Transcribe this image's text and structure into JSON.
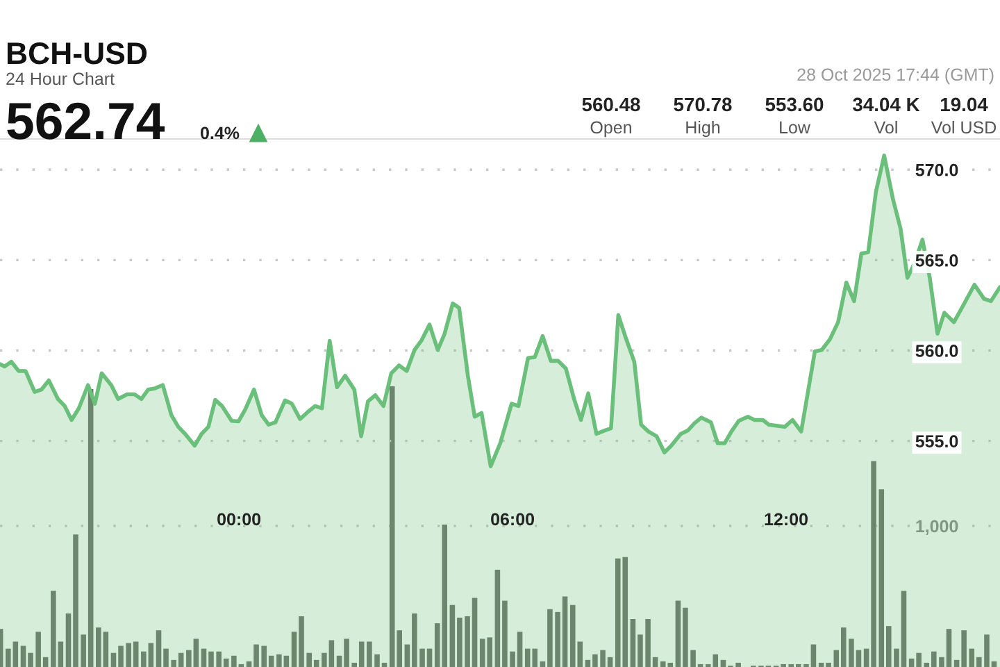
{
  "chart_data": {
    "type": "area",
    "title": "BCH-USD",
    "subtitle": "24 Hour Chart",
    "annotations": [
      "562.74",
      "0.4%",
      "28 Oct 2025 17:44 (GMT)",
      "560.48",
      "Open",
      "570.78",
      "High",
      "553.60",
      "Low",
      "34.04 K",
      "Vol",
      "19.04",
      "Vol USD"
    ],
    "xlim": [
      -5.24,
      16.69
    ],
    "xticks": [
      {
        "value": 0,
        "label": "00:00"
      },
      {
        "value": 6,
        "label": "06:00"
      },
      {
        "value": 12,
        "label": "12:00"
      }
    ],
    "ylim": [
      542.5,
      571.7
    ],
    "yticks": [
      {
        "value": 555,
        "label": "555.0"
      },
      {
        "value": 560,
        "label": "560.0"
      },
      {
        "value": 565,
        "label": "565.0"
      },
      {
        "value": 570,
        "label": "570.0"
      }
    ],
    "y2lim": [
      0,
      3744
    ],
    "y2ticks": [
      {
        "value": 1000,
        "label": "1,000"
      }
    ],
    "grid": "y",
    "legend": false,
    "series": [
      {
        "type": "bar",
        "axis": "y2",
        "color": "#6b7168",
        "x": [
          -5.23,
          -5.06,
          -4.9,
          -4.73,
          -4.57,
          -4.4,
          -4.24,
          -4.07,
          -3.91,
          -3.74,
          -3.58,
          -3.41,
          -3.25,
          -3.08,
          -2.92,
          -2.75,
          -2.59,
          -2.42,
          -2.26,
          -2.09,
          -1.93,
          -1.76,
          -1.6,
          -1.43,
          -1.27,
          -1.1,
          -0.94,
          -0.77,
          -0.61,
          -0.44,
          -0.28,
          -0.11,
          0.05,
          0.22,
          0.38,
          0.55,
          0.71,
          0.88,
          1.04,
          1.21,
          1.37,
          1.54,
          1.7,
          1.87,
          2.03,
          2.2,
          2.36,
          2.53,
          2.69,
          2.86,
          3.03,
          3.19,
          3.36,
          3.52,
          3.69,
          3.85,
          4.02,
          4.18,
          4.35,
          4.51,
          4.68,
          4.84,
          5.01,
          5.17,
          5.34,
          5.5,
          5.67,
          5.83,
          6.0,
          6.16,
          6.33,
          6.49,
          6.66,
          6.82,
          6.99,
          7.15,
          7.32,
          7.48,
          7.65,
          7.81,
          7.98,
          8.14,
          8.31,
          8.47,
          8.64,
          8.8,
          8.97,
          9.13,
          9.3,
          9.46,
          9.63,
          9.79,
          9.96,
          10.12,
          10.29,
          10.45,
          10.62,
          10.78,
          10.95,
          11.11,
          11.28,
          11.45,
          11.61,
          11.78,
          11.94,
          12.11,
          12.27,
          12.44,
          12.6,
          12.77,
          12.93,
          13.1,
          13.26,
          13.43,
          13.59,
          13.76,
          13.92,
          14.09,
          14.25,
          14.42,
          14.58,
          14.75,
          14.91,
          15.08,
          15.24,
          15.41,
          15.57,
          15.74,
          15.9,
          16.07,
          16.23,
          16.4,
          16.56
        ],
        "values": [
          270,
          130,
          180,
          150,
          100,
          250,
          70,
          540,
          180,
          380,
          940,
          230,
          1970,
          280,
          250,
          100,
          150,
          170,
          180,
          110,
          170,
          260,
          130,
          50,
          100,
          120,
          200,
          130,
          110,
          110,
          60,
          80,
          20,
          40,
          160,
          150,
          80,
          90,
          80,
          250,
          360,
          100,
          50,
          100,
          190,
          80,
          200,
          30,
          180,
          180,
          90,
          30,
          1990,
          260,
          160,
          380,
          130,
          130,
          310,
          1010,
          440,
          350,
          360,
          490,
          200,
          210,
          690,
          470,
          110,
          250,
          130,
          130,
          40,
          410,
          390,
          500,
          440,
          180,
          50,
          90,
          120,
          70,
          770,
          780,
          340,
          230,
          340,
          70,
          40,
          30,
          470,
          420,
          120,
          20,
          20,
          90,
          50,
          10,
          30,
          0,
          10,
          10,
          10,
          10,
          20,
          20,
          20,
          20,
          160,
          30,
          30,
          120,
          280,
          200,
          120,
          130,
          1460,
          1260,
          290,
          130,
          540,
          60,
          100,
          30,
          110,
          70,
          270,
          50,
          260,
          130,
          70,
          230,
          40
        ]
      },
      {
        "color": "#6abf7b",
        "x": [
          -5.24,
          -5.14,
          -4.99,
          -4.83,
          -4.68,
          -4.48,
          -4.33,
          -4.17,
          -3.97,
          -3.82,
          -3.67,
          -3.51,
          -3.31,
          -3.16,
          -3.01,
          -2.8,
          -2.65,
          -2.45,
          -2.29,
          -2.14,
          -1.99,
          -1.84,
          -1.67,
          -1.48,
          -1.33,
          -1.18,
          -0.97,
          -0.82,
          -0.67,
          -0.52,
          -0.37,
          -0.16,
          -0.01,
          0.14,
          0.33,
          0.5,
          0.65,
          0.8,
          1.01,
          1.16,
          1.34,
          1.51,
          1.67,
          1.82,
          1.99,
          2.15,
          2.33,
          2.53,
          2.68,
          2.83,
          2.99,
          3.17,
          3.34,
          3.51,
          3.68,
          3.85,
          4.0,
          4.18,
          4.36,
          4.51,
          4.69,
          4.83,
          5.02,
          5.17,
          5.32,
          5.52,
          5.73,
          5.98,
          6.13,
          6.34,
          6.49,
          6.66,
          6.84,
          7.0,
          7.17,
          7.35,
          7.5,
          7.66,
          7.84,
          8.01,
          8.16,
          8.32,
          8.47,
          8.67,
          8.82,
          8.98,
          9.16,
          9.33,
          9.48,
          9.69,
          9.84,
          9.99,
          10.14,
          10.35,
          10.5,
          10.65,
          10.8,
          10.96,
          11.16,
          11.31,
          11.49,
          11.62,
          11.82,
          11.97,
          12.14,
          12.33,
          12.63,
          12.78,
          12.96,
          13.14,
          13.32,
          13.49,
          13.65,
          13.8,
          13.97,
          14.15,
          14.34,
          14.51,
          14.66,
          14.81,
          14.99,
          15.15,
          15.32,
          15.47,
          15.68,
          15.88,
          16.13,
          16.34,
          16.49,
          16.69
        ],
        "values": [
          559.25,
          559.12,
          559.38,
          558.87,
          558.87,
          557.71,
          557.84,
          558.35,
          557.32,
          556.93,
          556.16,
          556.81,
          558.09,
          557.06,
          558.74,
          558.09,
          557.32,
          557.58,
          557.58,
          557.32,
          557.84,
          557.91,
          558.09,
          556.42,
          555.78,
          555.39,
          554.74,
          555.39,
          555.78,
          557.27,
          556.93,
          556.11,
          556.08,
          556.75,
          557.84,
          556.42,
          555.9,
          556.03,
          557.24,
          557.06,
          556.21,
          556.6,
          556.93,
          556.81,
          560.54,
          557.97,
          558.61,
          557.84,
          555.26,
          557.19,
          557.53,
          556.93,
          558.74,
          559.18,
          558.87,
          560.03,
          560.54,
          561.44,
          560.03,
          560.93,
          562.6,
          562.35,
          558.61,
          556.34,
          556.55,
          553.6,
          554.87,
          557.06,
          556.93,
          559.59,
          559.64,
          560.8,
          559.43,
          559.43,
          559.0,
          557.32,
          556.16,
          557.63,
          555.39,
          555.57,
          555.7,
          561.96,
          560.8,
          559.38,
          555.9,
          555.52,
          555.26,
          554.36,
          554.74,
          555.39,
          555.57,
          555.98,
          556.29,
          556.03,
          554.87,
          554.87,
          555.52,
          556.11,
          556.34,
          556.16,
          556.16,
          555.9,
          555.83,
          555.78,
          556.16,
          555.52,
          559.95,
          560.03,
          560.62,
          561.57,
          563.76,
          562.73,
          565.36,
          565.44,
          568.79,
          570.78,
          568.4,
          566.73,
          564.02,
          564.79,
          566.13,
          564.02,
          560.93,
          562.09,
          561.57,
          562.48,
          563.64,
          562.86,
          562.73,
          563.51
        ]
      }
    ]
  }
}
